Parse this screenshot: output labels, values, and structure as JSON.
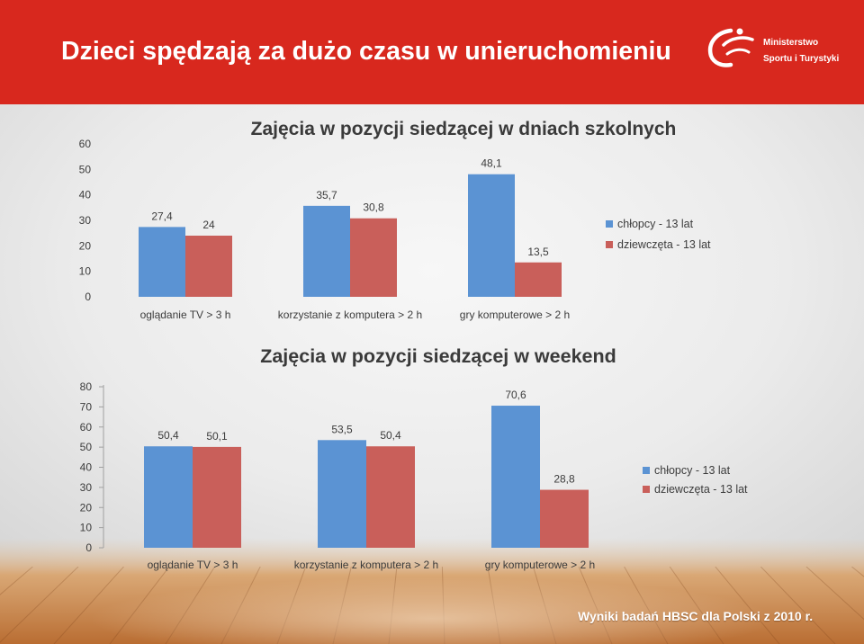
{
  "header": {
    "title": "Dzieci spędzają za dużo czasu w unieruchomieniu",
    "logo": {
      "line1": "Ministerstwo",
      "line2": "Sportu i Turystyki"
    }
  },
  "footer": {
    "source": "Wyniki badań HBSC dla Polski z 2010 r."
  },
  "colors": {
    "header": "#d8281e",
    "chart_text": "#3c3c3c"
  },
  "chart_data": [
    {
      "type": "bar",
      "title": "Zajęcia w pozycji siedzącej w dniach szkolnych",
      "categories": [
        "oglądanie TV > 3 h",
        "korzystanie z komputera > 2 h",
        "gry komputerowe > 2 h"
      ],
      "series": [
        {
          "name": "chłopcy - 13 lat",
          "color": "#5b93d3",
          "values": [
            27.4,
            35.7,
            48.1
          ],
          "labels": [
            "27,4",
            "35,7",
            "48,1"
          ]
        },
        {
          "name": "dziewczęta - 13 lat",
          "color": "#c95f5a",
          "values": [
            24,
            30.8,
            13.5
          ],
          "labels": [
            "24",
            "30,8",
            "13,5"
          ]
        }
      ],
      "yticks": [
        0,
        10,
        20,
        30,
        40,
        50,
        60
      ],
      "ylim": [
        0,
        60
      ],
      "grid": false,
      "legend": "right"
    },
    {
      "type": "bar",
      "title": "Zajęcia w pozycji siedzącej w weekend",
      "categories": [
        "oglądanie TV > 3 h",
        "korzystanie z komputera > 2 h",
        "gry komputerowe > 2 h"
      ],
      "series": [
        {
          "name": "chłopcy - 13 lat",
          "color": "#5b93d3",
          "values": [
            50.4,
            53.5,
            70.6
          ],
          "labels": [
            "50,4",
            "53,5",
            "70,6"
          ]
        },
        {
          "name": "dziewczęta - 13 lat",
          "color": "#c95f5a",
          "values": [
            50.1,
            50.4,
            28.8
          ],
          "labels": [
            "50,1",
            "50,4",
            "28,8"
          ]
        }
      ],
      "yticks": [
        0,
        10,
        20,
        30,
        40,
        50,
        60,
        70,
        80
      ],
      "ylim": [
        0,
        80
      ],
      "grid": false,
      "legend": "right"
    }
  ]
}
